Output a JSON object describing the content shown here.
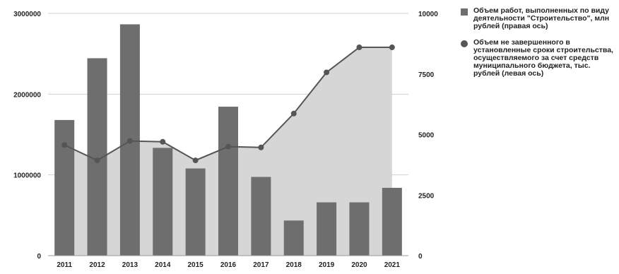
{
  "chart_data": {
    "type": "bar",
    "categories": [
      "2011",
      "2012",
      "2013",
      "2014",
      "2015",
      "2016",
      "2017",
      "2018",
      "2019",
      "2020",
      "2021"
    ],
    "left_axis": {
      "range": [
        0,
        3000000
      ],
      "ticks": [
        "0",
        "1000000",
        "2000000",
        "3000000"
      ]
    },
    "right_axis": {
      "range": [
        0,
        10000
      ],
      "ticks": [
        "0",
        "2500",
        "5000",
        "7500",
        "10000"
      ]
    },
    "grid": true,
    "legend_position": "right",
    "series": [
      {
        "name": "Объем работ, выполненных по виду деятельности \"Строительство\", млн рублей (правая ось)",
        "type": "bar",
        "axis": "right",
        "color": "#6e6e6e",
        "values": [
          5600,
          8150,
          9550,
          4450,
          3600,
          6150,
          3250,
          1450,
          2200,
          2200,
          2800
        ]
      },
      {
        "name": "Объем не завершенного в установленные сроки строительства, осуществляемого за счет средств муниципального бюджета, тыс. рублей (левая ось)",
        "type": "line-area",
        "axis": "left",
        "color": "#555555",
        "fill": "#d6d6d6",
        "values": [
          1370000,
          1180000,
          1420000,
          1410000,
          1180000,
          1350000,
          1340000,
          1760000,
          2270000,
          2580000,
          2580000
        ]
      }
    ]
  }
}
